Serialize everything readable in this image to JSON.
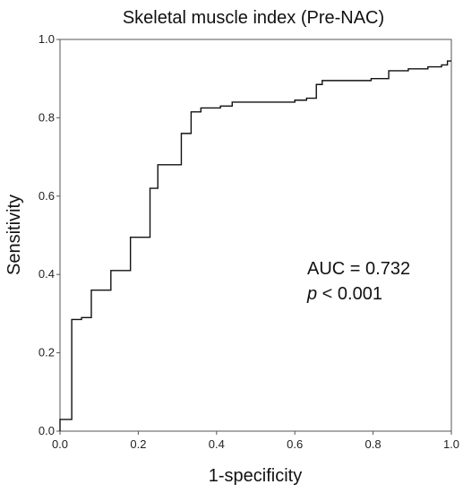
{
  "chart_data": {
    "type": "line",
    "title": "Skeletal muscle index (Pre-NAC)",
    "xlabel": "1-specificity",
    "ylabel": "Sensitivity",
    "xlim": [
      0.0,
      1.0
    ],
    "ylim": [
      0.0,
      1.0
    ],
    "x_ticks": [
      "0.0",
      "0.2",
      "0.4",
      "0.6",
      "0.8",
      "1.0"
    ],
    "y_ticks": [
      "0.0",
      "0.2",
      "0.4",
      "0.6",
      "0.8",
      "1.0"
    ],
    "grid": false,
    "legend": "none",
    "annotations": {
      "auc": "AUC = 0.732",
      "p_symbol": "p",
      "p_rest": " < 0.001"
    },
    "series": [
      {
        "style": "step",
        "points": [
          [
            0.0,
            0.0
          ],
          [
            0.0,
            0.03
          ],
          [
            0.03,
            0.03
          ],
          [
            0.03,
            0.285
          ],
          [
            0.055,
            0.285
          ],
          [
            0.055,
            0.29
          ],
          [
            0.08,
            0.29
          ],
          [
            0.08,
            0.36
          ],
          [
            0.13,
            0.36
          ],
          [
            0.13,
            0.41
          ],
          [
            0.18,
            0.41
          ],
          [
            0.18,
            0.495
          ],
          [
            0.23,
            0.495
          ],
          [
            0.23,
            0.62
          ],
          [
            0.25,
            0.62
          ],
          [
            0.25,
            0.68
          ],
          [
            0.31,
            0.68
          ],
          [
            0.31,
            0.76
          ],
          [
            0.335,
            0.76
          ],
          [
            0.335,
            0.815
          ],
          [
            0.36,
            0.815
          ],
          [
            0.36,
            0.825
          ],
          [
            0.41,
            0.825
          ],
          [
            0.41,
            0.83
          ],
          [
            0.44,
            0.83
          ],
          [
            0.44,
            0.84
          ],
          [
            0.6,
            0.84
          ],
          [
            0.6,
            0.845
          ],
          [
            0.63,
            0.845
          ],
          [
            0.63,
            0.85
          ],
          [
            0.655,
            0.85
          ],
          [
            0.655,
            0.885
          ],
          [
            0.67,
            0.885
          ],
          [
            0.67,
            0.895
          ],
          [
            0.795,
            0.895
          ],
          [
            0.795,
            0.9
          ],
          [
            0.84,
            0.9
          ],
          [
            0.84,
            0.92
          ],
          [
            0.89,
            0.92
          ],
          [
            0.89,
            0.925
          ],
          [
            0.94,
            0.925
          ],
          [
            0.94,
            0.93
          ],
          [
            0.975,
            0.93
          ],
          [
            0.975,
            0.935
          ],
          [
            0.99,
            0.935
          ],
          [
            0.99,
            0.945
          ],
          [
            1.0,
            0.945
          ]
        ]
      }
    ]
  }
}
